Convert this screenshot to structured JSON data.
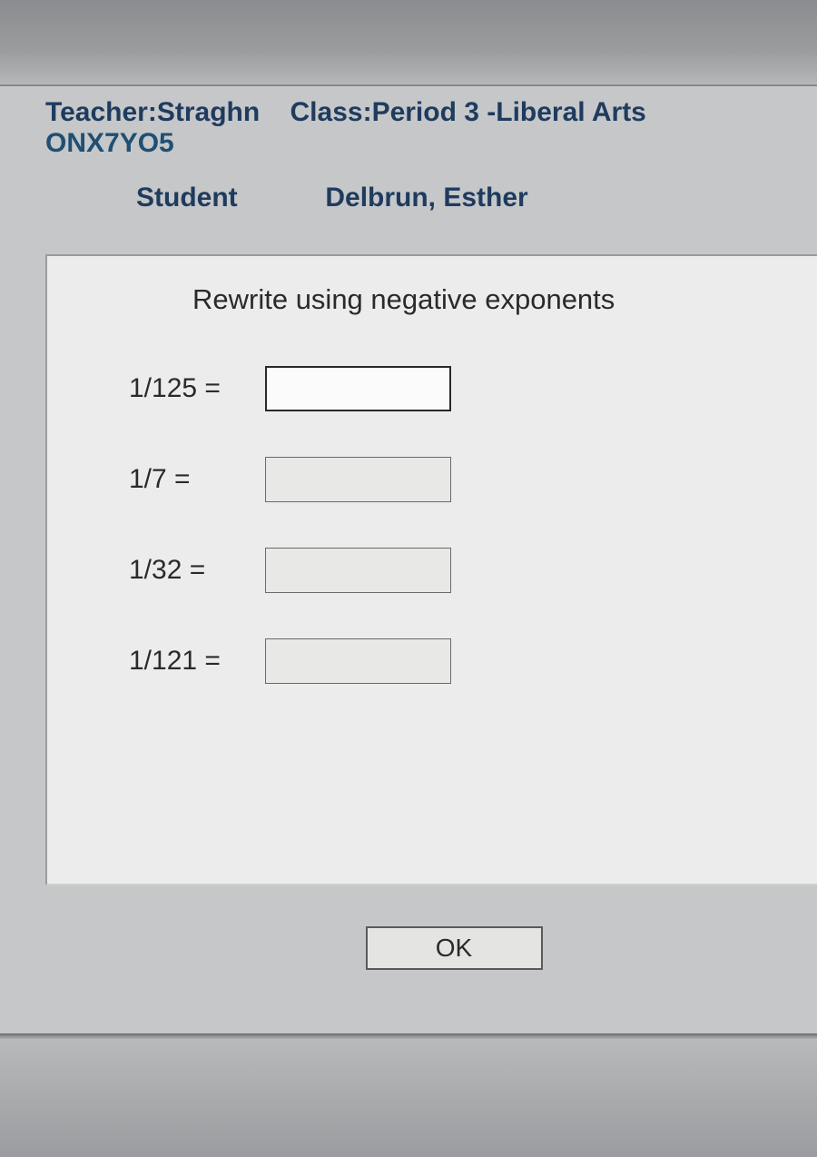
{
  "header": {
    "teacher_label": "Teacher:",
    "teacher_value": "Straghn",
    "class_label": "Class:",
    "class_value": "Period 3 -Liberal Arts",
    "code": "ONX7YO5",
    "student_label": "Student",
    "student_value": "Delbrun, Esther"
  },
  "question": {
    "title": "Rewrite using negative exponents",
    "problems": [
      {
        "label": "1/125  =",
        "value": "",
        "focused": true
      },
      {
        "label": "1/7  =",
        "value": "",
        "focused": false
      },
      {
        "label": "1/32  =",
        "value": "",
        "focused": false
      },
      {
        "label": "1/121 =",
        "value": "",
        "focused": false
      }
    ],
    "ok_label": "OK"
  },
  "colors": {
    "header_text": "#1f3b5e",
    "code_text": "#1f4f73",
    "panel_bg": "#ebeceb",
    "page_bg": "#c5c7c9",
    "input_border_active": "#2a2a2a",
    "input_border_inactive": "#6a6a6a"
  }
}
